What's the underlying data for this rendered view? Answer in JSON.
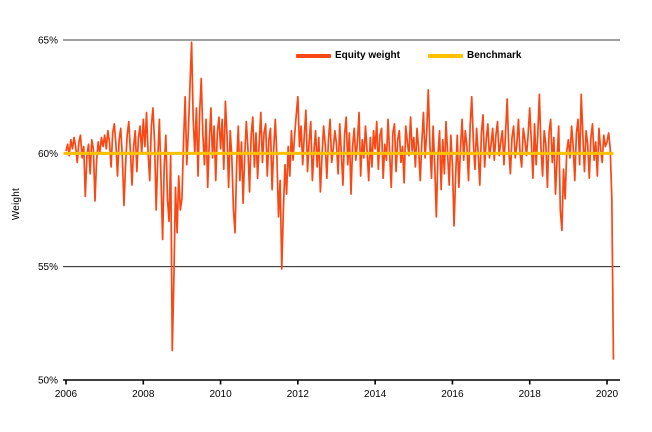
{
  "page": {
    "background": "#FFFFFF"
  },
  "chart_data": {
    "type": "line",
    "title": "",
    "xlabel": "",
    "ylabel": "Weight",
    "ylim": [
      50,
      65
    ],
    "xlim": [
      2006,
      2020.35
    ],
    "grid": "horizontal-gridlines-at-55-and-65-only",
    "legend_position": "top-center",
    "x_tick_labels": [
      "2006",
      "2008",
      "2010",
      "2012",
      "2014",
      "2016",
      "2018",
      "2020"
    ],
    "x_tick_years": [
      2006,
      2008,
      2010,
      2012,
      2014,
      2016,
      2018,
      2020
    ],
    "y_tick_labels": [
      "50%",
      "55%",
      "60%",
      "65%"
    ],
    "y_tick_values": [
      50,
      55,
      60,
      65
    ],
    "y_gridline_values": [
      55,
      65
    ],
    "x_start": 2006,
    "x_step_years": 0.0416667,
    "axis_color": "#000000",
    "series": [
      {
        "name": "Equity weight",
        "color": "#FA4713",
        "values": [
          60.1,
          60.4,
          59.9,
          60.6,
          60.2,
          60.7,
          60.3,
          59.6,
          60.5,
          60.8,
          59.8,
          60.3,
          58.1,
          59.9,
          60.4,
          59.1,
          60.6,
          60.2,
          57.9,
          59.7,
          60.5,
          60.0,
          60.7,
          60.3,
          60.8,
          60.2,
          61.0,
          60.5,
          59.4,
          60.9,
          61.3,
          60.4,
          59.0,
          60.6,
          61.1,
          59.8,
          57.7,
          59.5,
          60.8,
          61.4,
          60.1,
          58.6,
          60.3,
          61.0,
          59.2,
          60.7,
          61.2,
          60.0,
          61.5,
          60.3,
          61.8,
          60.0,
          58.8,
          61.2,
          62.0,
          60.5,
          57.5,
          59.8,
          61.5,
          58.9,
          56.2,
          59.4,
          60.8,
          58.0,
          57.0,
          59.9,
          51.3,
          54.5,
          58.5,
          56.5,
          59.0,
          57.5,
          58.0,
          60.5,
          62.5,
          59.5,
          61.0,
          63.0,
          64.9,
          61.5,
          60.0,
          62.0,
          59.0,
          61.8,
          63.3,
          60.8,
          59.5,
          61.5,
          58.5,
          60.5,
          62.0,
          59.8,
          61.2,
          58.8,
          60.9,
          61.6,
          60.2,
          61.5,
          59.3,
          62.3,
          60.8,
          58.5,
          61.0,
          59.8,
          57.5,
          56.5,
          59.5,
          61.2,
          58.8,
          60.5,
          57.8,
          59.9,
          61.4,
          60.2,
          58.3,
          60.8,
          61.6,
          59.4,
          60.9,
          58.9,
          60.5,
          61.8,
          59.6,
          60.9,
          61.3,
          59.0,
          60.6,
          61.1,
          58.4,
          60.2,
          61.5,
          59.8,
          57.2,
          58.8,
          54.9,
          57.5,
          59.5,
          58.2,
          60.3,
          59.0,
          61.0,
          59.7,
          60.8,
          61.7,
          62.5,
          60.3,
          61.2,
          59.5,
          60.8,
          61.9,
          59.2,
          60.5,
          61.4,
          58.8,
          60.1,
          61.0,
          59.4,
          60.7,
          58.3,
          59.9,
          61.2,
          60.4,
          58.9,
          60.6,
          61.5,
          59.6,
          60.2,
          61.0,
          60.4,
          59.1,
          61.3,
          60.0,
          58.6,
          60.8,
          61.6,
          59.5,
          60.9,
          58.2,
          60.3,
          61.1,
          59.7,
          60.5,
          61.8,
          59.0,
          60.6,
          59.8,
          61.2,
          60.1,
          58.8,
          60.7,
          59.4,
          61.0,
          60.2,
          61.4,
          59.3,
          60.8,
          61.1,
          58.9,
          60.4,
          59.7,
          61.5,
          60.0,
          58.5,
          60.9,
          61.3,
          59.2,
          60.6,
          61.0,
          59.6,
          60.3,
          58.7,
          61.2,
          60.5,
          59.9,
          61.6,
          60.1,
          60.7,
          59.4,
          61.1,
          60.2,
          58.8,
          60.5,
          61.8,
          59.8,
          60.9,
          62.8,
          60.4,
          58.9,
          61.2,
          59.5,
          57.2,
          59.9,
          61.0,
          58.4,
          60.6,
          59.1,
          61.4,
          60.0,
          58.6,
          60.8,
          59.5,
          56.8,
          59.0,
          60.8,
          58.5,
          60.2,
          61.5,
          59.7,
          61.0,
          60.3,
          58.8,
          61.2,
          62.5,
          60.5,
          59.3,
          61.1,
          60.0,
          58.6,
          60.9,
          61.7,
          59.4,
          60.6,
          61.3,
          59.8,
          60.4,
          61.1,
          59.7,
          60.8,
          61.4,
          59.9,
          60.5,
          61.0,
          59.5,
          60.9,
          62.4,
          60.2,
          59.1,
          60.7,
          61.2,
          59.8,
          60.4,
          61.5,
          60.0,
          59.4,
          61.1,
          60.6,
          59.9,
          60.8,
          62.0,
          60.5,
          58.9,
          61.3,
          59.5,
          60.8,
          62.6,
          60.2,
          59.0,
          61.0,
          60.4,
          58.5,
          60.9,
          61.5,
          59.6,
          60.7,
          58.2,
          59.8,
          61.2,
          57.5,
          56.6,
          59.3,
          58.0,
          60.1,
          60.6,
          59.8,
          61.2,
          60.3,
          58.8,
          60.9,
          61.5,
          59.5,
          62.6,
          60.8,
          59.2,
          61.0,
          60.4,
          58.9,
          60.7,
          61.3,
          59.7,
          60.5,
          59.0,
          61.1,
          60.2,
          59.6,
          60.8,
          60.3,
          60.5,
          60.9,
          60.2,
          58.0,
          50.9
        ]
      },
      {
        "name": "Benchmark",
        "color": "#FFC000",
        "type": "constant",
        "value": 60
      }
    ]
  }
}
